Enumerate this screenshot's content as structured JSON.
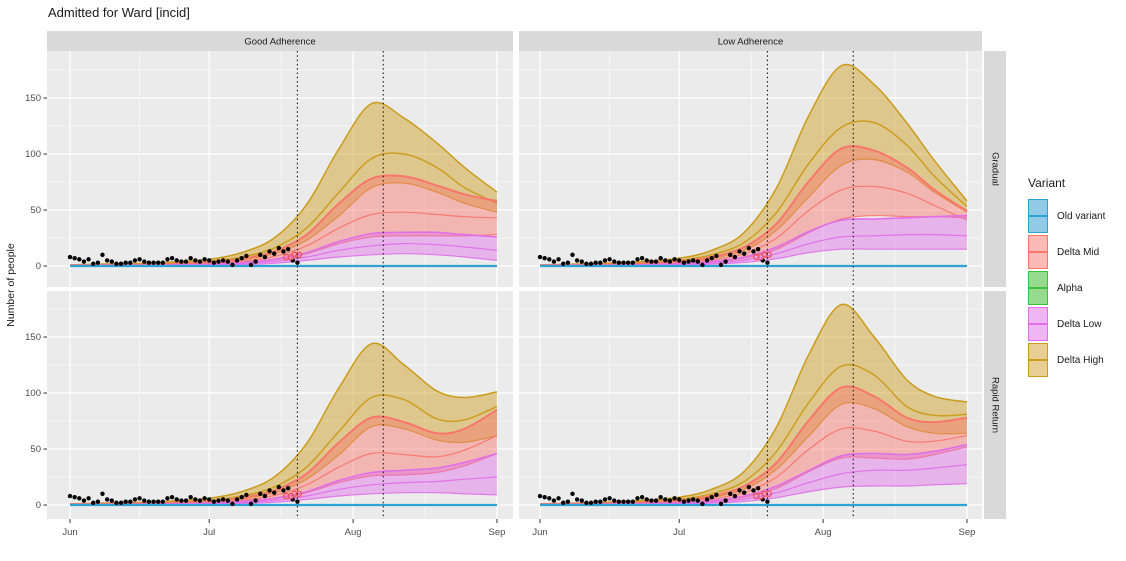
{
  "chart_data": {
    "type": "area",
    "title": "Admitted for Ward [incid]",
    "ylabel": "Number of people",
    "x_tick_labels": [
      "Jun",
      "Jul",
      "Aug",
      "Sep"
    ],
    "x_tick_days": [
      0,
      30,
      61,
      92
    ],
    "x_minor_days": [
      15,
      45.5,
      76.5
    ],
    "y_ticks": [
      0,
      50,
      100,
      150
    ],
    "y_minor_ticks": [
      25,
      75,
      125,
      175
    ],
    "ylim": [
      0,
      190
    ],
    "grid": true,
    "facet_cols": [
      "Good Adherence",
      "Low Adherence"
    ],
    "facet_rows": [
      "Gradual",
      "Rapid Return"
    ],
    "legend": {
      "title": "Variant",
      "position": "right",
      "entries": [
        {
          "label": "Old variant",
          "stroke": "#2BA3D4",
          "key_fill": "#92C9E7"
        },
        {
          "label": "Delta Mid",
          "stroke": "#F8766D",
          "key_fill": "#FBBAB5"
        },
        {
          "label": "Alpha",
          "stroke": "#3DBE3D",
          "key_fill": "#97DB90"
        },
        {
          "label": "Delta Low",
          "stroke": "#E06FE8",
          "key_fill": "#EFB6F3"
        },
        {
          "label": "Delta High",
          "stroke": "#CB9B1A",
          "key_fill": "#E6CE94"
        }
      ]
    },
    "colors": {
      "panel_bg": "#EBEBEB",
      "strip_bg": "#D9D9D9",
      "gridline": "#FFFFFF",
      "axis_text": "#4D4D4D",
      "point_black": "#000000",
      "point_red": "#F2545B",
      "vline": "#1A1A1A"
    },
    "intervention_line_days": [
      49,
      67.5
    ],
    "days": [
      0,
      10,
      20,
      30,
      37,
      44,
      51,
      58,
      65,
      72,
      79,
      85,
      92
    ],
    "panels": [
      {
        "col": "Good Adherence",
        "row": "Gradual",
        "delta_high": {
          "upper": [
            1,
            2,
            3,
            6,
            12,
            25,
            55,
            105,
            145,
            132,
            110,
            88,
            66
          ],
          "median": [
            0.7,
            1.3,
            2,
            4,
            8,
            16,
            34,
            66,
            96,
            100,
            88,
            70,
            56
          ],
          "lower": [
            0.5,
            0.9,
            1.4,
            2.8,
            5.5,
            11,
            23,
            45,
            70,
            74,
            66,
            56,
            48
          ]
        },
        "delta_mid": {
          "upper": [
            0.6,
            1.1,
            1.7,
            3.3,
            6.5,
            13,
            28,
            56,
            78,
            80,
            72,
            64,
            58
          ],
          "median": [
            0.4,
            0.7,
            1.1,
            2.2,
            4.2,
            8.5,
            18,
            34,
            46,
            48,
            46,
            44,
            43
          ],
          "lower": [
            0.3,
            0.5,
            0.7,
            1.4,
            2.7,
            5.5,
            11,
            20,
            26,
            27,
            27,
            27,
            28
          ]
        },
        "delta_low": {
          "upper": [
            0.3,
            0.5,
            0.8,
            1.5,
            3,
            6,
            12,
            22,
            29,
            30,
            30,
            28,
            26
          ],
          "median": [
            0.2,
            0.35,
            0.55,
            1,
            2,
            4,
            8,
            14,
            18,
            20,
            19,
            17,
            14
          ],
          "lower": [
            0.1,
            0.2,
            0.3,
            0.6,
            1.2,
            2.4,
            5,
            8,
            10,
            11,
            10,
            8,
            5
          ]
        },
        "old_variant_level": 0,
        "alpha_level": 0
      },
      {
        "col": "Low Adherence",
        "row": "Gradual",
        "delta_high": {
          "upper": [
            1,
            2,
            3.5,
            7,
            14,
            30,
            70,
            135,
            179,
            162,
            128,
            94,
            58
          ],
          "median": [
            0.7,
            1.4,
            2.4,
            5,
            10,
            21,
            48,
            92,
            124,
            128,
            108,
            80,
            53
          ],
          "lower": [
            0.5,
            1,
            1.7,
            3.5,
            7,
            14,
            32,
            62,
            90,
            95,
            84,
            66,
            48
          ]
        },
        "delta_mid": {
          "upper": [
            0.6,
            1.2,
            2,
            4,
            8,
            17,
            38,
            76,
            105,
            103,
            88,
            68,
            49
          ],
          "median": [
            0.4,
            0.8,
            1.4,
            2.8,
            5.5,
            11,
            25,
            50,
            68,
            71,
            65,
            54,
            41
          ],
          "lower": [
            0.3,
            0.5,
            0.9,
            1.8,
            3.5,
            7,
            15,
            30,
            42,
            45,
            44,
            44,
            43
          ]
        },
        "delta_low": {
          "upper": [
            0.3,
            0.6,
            1,
            2,
            4,
            8,
            17,
            31,
            41,
            42,
            43,
            44,
            45
          ],
          "median": [
            0.2,
            0.4,
            0.7,
            1.3,
            2.6,
            5.3,
            11,
            20,
            26,
            27,
            28,
            28,
            27
          ],
          "lower": [
            0.1,
            0.25,
            0.4,
            0.8,
            1.6,
            3.2,
            6.5,
            12,
            15,
            15,
            15,
            15,
            15
          ]
        },
        "old_variant_level": 0,
        "alpha_level": 0
      },
      {
        "col": "Good Adherence",
        "row": "Rapid Return",
        "delta_high": {
          "upper": [
            1,
            2,
            3,
            6,
            12,
            25,
            55,
            105,
            144,
            125,
            102,
            96,
            101
          ],
          "median": [
            0.7,
            1.3,
            2,
            4,
            8,
            16,
            34,
            66,
            96,
            94,
            77,
            76,
            88
          ],
          "lower": [
            0.5,
            0.9,
            1.4,
            2.8,
            5.5,
            11,
            23,
            45,
            70,
            68,
            58,
            56,
            62
          ]
        },
        "delta_mid": {
          "upper": [
            0.6,
            1.1,
            1.7,
            3.3,
            6.5,
            13,
            28,
            56,
            78,
            74,
            64,
            68,
            85
          ],
          "median": [
            0.4,
            0.7,
            1.1,
            2.2,
            4.2,
            8.5,
            18,
            34,
            46,
            45,
            43,
            49,
            62
          ],
          "lower": [
            0.3,
            0.5,
            0.7,
            1.4,
            2.7,
            5.5,
            11,
            20,
            26,
            27,
            29,
            35,
            46
          ]
        },
        "delta_low": {
          "upper": [
            0.3,
            0.5,
            0.8,
            1.5,
            3,
            6,
            12,
            22,
            29,
            31,
            33,
            38,
            46
          ],
          "median": [
            0.2,
            0.35,
            0.55,
            1,
            2,
            4,
            8,
            14,
            18,
            20,
            21,
            23,
            25
          ],
          "lower": [
            0.1,
            0.2,
            0.3,
            0.6,
            1.2,
            2.4,
            5,
            8,
            10,
            11,
            11,
            10,
            9
          ]
        },
        "old_variant_level": 0,
        "alpha_level": 0
      },
      {
        "col": "Low Adherence",
        "row": "Rapid Return",
        "delta_high": {
          "upper": [
            1,
            2,
            3.5,
            7,
            14,
            30,
            70,
            135,
            179,
            150,
            112,
            97,
            92
          ],
          "median": [
            0.7,
            1.4,
            2.4,
            5,
            10,
            21,
            48,
            92,
            124,
            116,
            88,
            80,
            81
          ],
          "lower": [
            0.5,
            1,
            1.7,
            3.5,
            7,
            14,
            32,
            62,
            90,
            86,
            70,
            64,
            64
          ]
        },
        "delta_mid": {
          "upper": [
            0.6,
            1.2,
            2,
            4,
            8,
            17,
            38,
            76,
            105,
            97,
            78,
            74,
            78
          ],
          "median": [
            0.4,
            0.8,
            1.4,
            2.8,
            5.5,
            11,
            25,
            50,
            68,
            66,
            57,
            57,
            62
          ],
          "lower": [
            0.3,
            0.5,
            0.9,
            1.8,
            3.5,
            7,
            15,
            30,
            42,
            42,
            41,
            45,
            52
          ]
        },
        "delta_low": {
          "upper": [
            0.3,
            0.6,
            1,
            2,
            4,
            8,
            17,
            31,
            44,
            46,
            45,
            48,
            54
          ],
          "median": [
            0.2,
            0.4,
            0.7,
            1.3,
            2.6,
            5.3,
            11,
            20,
            28,
            31,
            31,
            33,
            36
          ],
          "lower": [
            0.1,
            0.25,
            0.4,
            0.8,
            1.6,
            3.2,
            6.5,
            12,
            16,
            17,
            17,
            18,
            19
          ]
        },
        "old_variant_level": 0,
        "alpha_level": 0
      }
    ],
    "observed_points": {
      "black": [
        [
          0,
          8
        ],
        [
          1,
          7
        ],
        [
          2,
          6
        ],
        [
          3,
          4
        ],
        [
          4,
          6
        ],
        [
          5,
          2
        ],
        [
          6,
          3
        ],
        [
          7,
          10
        ],
        [
          8,
          5
        ],
        [
          9,
          4
        ],
        [
          10,
          2
        ],
        [
          11,
          2
        ],
        [
          12,
          3
        ],
        [
          13,
          3
        ],
        [
          14,
          5
        ],
        [
          15,
          6
        ],
        [
          16,
          4
        ],
        [
          17,
          3
        ],
        [
          18,
          3
        ],
        [
          19,
          3
        ],
        [
          20,
          3
        ],
        [
          21,
          6
        ],
        [
          22,
          7
        ],
        [
          23,
          5
        ],
        [
          24,
          4
        ],
        [
          25,
          4
        ],
        [
          26,
          7
        ],
        [
          27,
          5
        ],
        [
          28,
          4
        ],
        [
          29,
          6
        ],
        [
          30,
          5
        ],
        [
          31,
          3
        ],
        [
          32,
          4
        ],
        [
          33,
          5
        ],
        [
          34,
          4
        ],
        [
          35,
          1
        ],
        [
          36,
          5
        ],
        [
          37,
          7
        ],
        [
          38,
          9
        ],
        [
          39,
          1
        ],
        [
          40,
          4
        ],
        [
          41,
          10
        ],
        [
          42,
          8
        ],
        [
          43,
          13
        ],
        [
          44,
          11
        ],
        [
          45,
          16
        ],
        [
          46,
          13
        ],
        [
          47,
          15
        ],
        [
          48,
          5
        ],
        [
          49,
          3
        ]
      ],
      "red_circles": [
        [
          46.6,
          8
        ],
        [
          47.6,
          8
        ],
        [
          48.4,
          10
        ],
        [
          49.3,
          10
        ]
      ]
    }
  }
}
